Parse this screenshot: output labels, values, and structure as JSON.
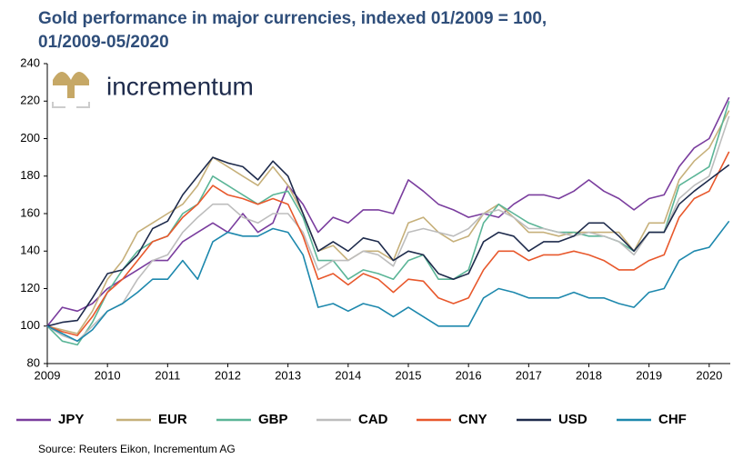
{
  "chart_data": {
    "type": "line",
    "title": "Gold performance in major currencies, indexed 01/2009 = 100,",
    "subtitle": "01/2009-05/2020",
    "logo_text": "incrementum",
    "source": "Source: Reuters Eikon, Incrementum AG",
    "x": [
      2009,
      2009.25,
      2009.5,
      2009.75,
      2010,
      2010.25,
      2010.5,
      2010.75,
      2011,
      2011.25,
      2011.5,
      2011.75,
      2012,
      2012.25,
      2012.5,
      2012.75,
      2013,
      2013.25,
      2013.5,
      2013.75,
      2014,
      2014.25,
      2014.5,
      2014.75,
      2015,
      2015.25,
      2015.5,
      2015.75,
      2016,
      2016.25,
      2016.5,
      2016.75,
      2017,
      2017.25,
      2017.5,
      2017.75,
      2018,
      2018.25,
      2018.5,
      2018.75,
      2019,
      2019.25,
      2019.5,
      2019.75,
      2020,
      2020.33
    ],
    "xlim": [
      2009,
      2020.35
    ],
    "xticks": [
      2009,
      2010,
      2011,
      2012,
      2013,
      2014,
      2015,
      2016,
      2017,
      2018,
      2019,
      2020
    ],
    "ylim": [
      80,
      240
    ],
    "yticks": [
      80,
      100,
      120,
      140,
      160,
      180,
      200,
      220,
      240
    ],
    "series": [
      {
        "name": "JPY",
        "color": "#7a3d9e",
        "values": [
          100,
          110,
          108,
          112,
          120,
          125,
          130,
          135,
          135,
          145,
          150,
          155,
          150,
          160,
          150,
          155,
          175,
          165,
          150,
          158,
          155,
          162,
          162,
          160,
          178,
          172,
          165,
          162,
          158,
          160,
          158,
          165,
          170,
          170,
          168,
          172,
          178,
          172,
          168,
          162,
          168,
          170,
          185,
          195,
          200,
          222
        ]
      },
      {
        "name": "EUR",
        "color": "#c6b07a",
        "values": [
          100,
          98,
          96,
          108,
          125,
          135,
          150,
          155,
          160,
          165,
          175,
          190,
          185,
          180,
          175,
          185,
          175,
          160,
          140,
          143,
          135,
          140,
          140,
          135,
          155,
          158,
          150,
          145,
          148,
          160,
          165,
          158,
          150,
          150,
          148,
          150,
          150,
          150,
          150,
          140,
          155,
          155,
          178,
          188,
          195,
          215
        ]
      },
      {
        "name": "GBP",
        "color": "#5bb597",
        "values": [
          100,
          92,
          90,
          102,
          118,
          130,
          140,
          145,
          148,
          160,
          165,
          180,
          175,
          170,
          165,
          170,
          172,
          158,
          135,
          135,
          125,
          130,
          128,
          125,
          135,
          138,
          125,
          125,
          130,
          155,
          165,
          160,
          155,
          152,
          150,
          150,
          148,
          148,
          145,
          140,
          150,
          150,
          175,
          180,
          185,
          220
        ]
      },
      {
        "name": "CAD",
        "color": "#bdbdbd",
        "values": [
          100,
          95,
          92,
          100,
          108,
          112,
          125,
          135,
          138,
          150,
          158,
          165,
          165,
          158,
          155,
          160,
          160,
          150,
          130,
          135,
          135,
          140,
          138,
          132,
          150,
          152,
          150,
          148,
          152,
          160,
          162,
          158,
          152,
          152,
          150,
          148,
          150,
          148,
          145,
          138,
          150,
          150,
          168,
          175,
          180,
          212
        ]
      },
      {
        "name": "CNY",
        "color": "#e8582c",
        "values": [
          100,
          97,
          95,
          105,
          118,
          125,
          135,
          145,
          148,
          158,
          165,
          175,
          170,
          168,
          165,
          168,
          165,
          148,
          125,
          128,
          122,
          128,
          125,
          118,
          125,
          124,
          115,
          112,
          115,
          130,
          140,
          140,
          135,
          138,
          138,
          140,
          138,
          135,
          130,
          130,
          135,
          138,
          158,
          168,
          172,
          193
        ]
      },
      {
        "name": "USD",
        "color": "#1e2b4c",
        "values": [
          100,
          102,
          103,
          115,
          128,
          130,
          138,
          152,
          156,
          170,
          180,
          190,
          187,
          185,
          178,
          188,
          180,
          160,
          140,
          145,
          140,
          147,
          145,
          135,
          140,
          138,
          128,
          125,
          128,
          145,
          150,
          148,
          140,
          145,
          145,
          148,
          155,
          155,
          148,
          140,
          150,
          150,
          165,
          172,
          178,
          186
        ]
      },
      {
        "name": "CHF",
        "color": "#1d88ad",
        "values": [
          100,
          96,
          92,
          98,
          108,
          112,
          118,
          125,
          125,
          135,
          125,
          145,
          150,
          148,
          148,
          152,
          150,
          138,
          110,
          112,
          108,
          112,
          110,
          105,
          110,
          105,
          100,
          100,
          100,
          115,
          120,
          118,
          115,
          115,
          115,
          118,
          115,
          115,
          112,
          110,
          118,
          120,
          135,
          140,
          142,
          156
        ]
      }
    ]
  }
}
